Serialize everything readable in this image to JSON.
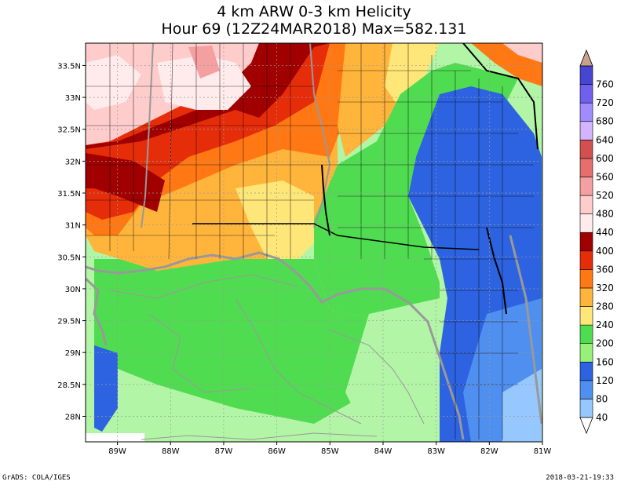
{
  "title_line1": "4 km ARW 0-3 km Helicity",
  "title_line2": "Hour 69 (12Z24MAR2018) Max=582.131",
  "footer_left": "GrADS: COLA/IGES",
  "footer_right": "2018-03-21-19:33",
  "map": {
    "lon_labels": [
      "89W",
      "88W",
      "87W",
      "86W",
      "85W",
      "84W",
      "83W",
      "82W",
      "81W"
    ],
    "lat_labels": [
      "33.5N",
      "33N",
      "32.5N",
      "32N",
      "31.5N",
      "31N",
      "30.5N",
      "30N",
      "29.5N",
      "29N",
      "28.5N",
      "28N"
    ],
    "lon_range": [
      -89.6,
      -81.0
    ],
    "lat_range": [
      27.6,
      33.85
    ],
    "ocean_fill": "#b3f5a6",
    "land_outline": "#999999",
    "county_lines": "#000000"
  },
  "colorbar": {
    "labels": [
      "40",
      "80",
      "120",
      "160",
      "200",
      "240",
      "280",
      "320",
      "360",
      "400",
      "440",
      "480",
      "520",
      "560",
      "600",
      "640",
      "680",
      "720",
      "760"
    ],
    "colors": [
      "#96c8ff",
      "#4f8ff0",
      "#2d63e0",
      "#96f07a",
      "#50dc50",
      "#ffe678",
      "#ffb43c",
      "#ff7814",
      "#e62d0a",
      "#a00000",
      "#ffebeb",
      "#ffcccc",
      "#f5a0a0",
      "#e66e6e",
      "#d25050",
      "#d2b4ff",
      "#a08cff",
      "#7060f0",
      "#4646d2"
    ],
    "top_cap": "#c8a08c",
    "bottom_cap": "#ffffff"
  }
}
